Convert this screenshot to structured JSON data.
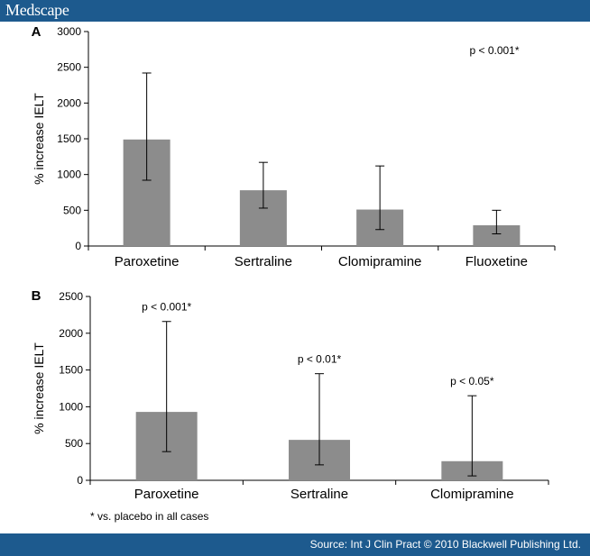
{
  "header": {
    "logo_text": "Medscape"
  },
  "footer": {
    "source_text": "Source: Int J Clin Pract © 2010 Blackwell Publishing Ltd."
  },
  "footnote": "* vs. placebo in all cases",
  "colors": {
    "brand_bar": "#1d5a8e",
    "bar_fill": "#8c8c8c"
  },
  "chart_data": [
    {
      "panel": "A",
      "type": "bar",
      "categories": [
        "Paroxetine",
        "Sertraline",
        "Clomipramine",
        "Fluoxetine"
      ],
      "values": [
        1490,
        780,
        510,
        290
      ],
      "error_low": [
        920,
        530,
        230,
        170
      ],
      "error_high": [
        2420,
        1170,
        1120,
        500
      ],
      "ylabel": "% increase IELT",
      "ylim": [
        0,
        3000
      ],
      "yticks": [
        0,
        500,
        1000,
        1500,
        2000,
        2500,
        3000
      ],
      "annotations": [
        {
          "text": "p < 0.001*",
          "position": "top-right"
        }
      ],
      "grid": false
    },
    {
      "panel": "B",
      "type": "bar",
      "categories": [
        "Paroxetine",
        "Sertraline",
        "Clomipramine"
      ],
      "values": [
        930,
        550,
        260
      ],
      "error_low": [
        390,
        210,
        60
      ],
      "error_high": [
        2160,
        1450,
        1150
      ],
      "ylabel": "% increase IELT",
      "ylim": [
        0,
        2500
      ],
      "yticks": [
        0,
        500,
        1000,
        1500,
        2000,
        2500
      ],
      "annotations": [
        {
          "text": "p < 0.001*",
          "category": "Paroxetine"
        },
        {
          "text": "p < 0.01*",
          "category": "Sertraline"
        },
        {
          "text": "p < 0.05*",
          "category": "Clomipramine"
        }
      ],
      "grid": false
    }
  ]
}
